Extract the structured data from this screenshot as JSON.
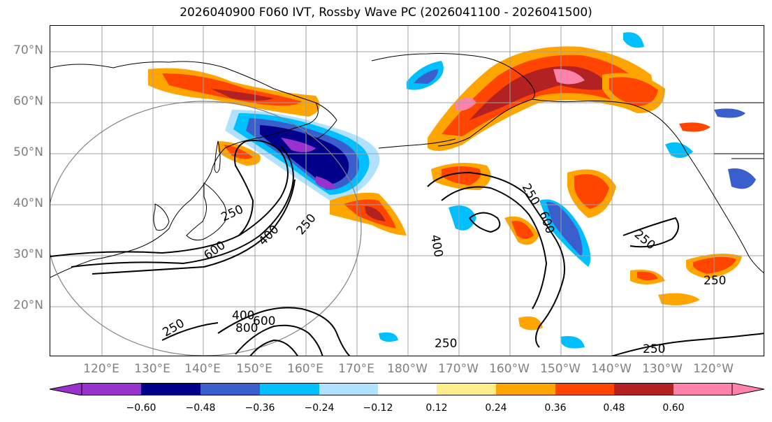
{
  "title": "2026040900 F060 IVT, Rossby Wave PC (2026041100 - 2026041500)",
  "map": {
    "lat_ticks": [
      "20°N",
      "30°N",
      "40°N",
      "50°N",
      "60°N",
      "70°N"
    ],
    "lon_ticks": [
      "120°E",
      "130°E",
      "140°E",
      "150°E",
      "160°E",
      "170°E",
      "180°W",
      "170°W",
      "160°W",
      "150°W",
      "140°W",
      "130°W",
      "120°W"
    ],
    "contour_labels": [
      "250",
      "400",
      "600",
      "250",
      "400",
      "600",
      "250",
      "400",
      "600",
      "800",
      "250",
      "250",
      "250",
      "250",
      "250"
    ],
    "extent": {
      "lon_min": 113,
      "lon_max": 253,
      "lat_min": 10,
      "lat_max": 75
    }
  },
  "colorbar": {
    "tick_labels": [
      "−0.60",
      "−0.48",
      "−0.36",
      "−0.24",
      "−0.12",
      "0.12",
      "0.24",
      "0.36",
      "0.48",
      "0.60"
    ],
    "colors": [
      "#9932cc",
      "#00008b",
      "#3a5fcd",
      "#00bfff",
      "#b0e2ff",
      "#ffffff",
      "#ffec8b",
      "#ffa500",
      "#ff4500",
      "#b22222",
      "#ff82ab"
    ]
  }
}
